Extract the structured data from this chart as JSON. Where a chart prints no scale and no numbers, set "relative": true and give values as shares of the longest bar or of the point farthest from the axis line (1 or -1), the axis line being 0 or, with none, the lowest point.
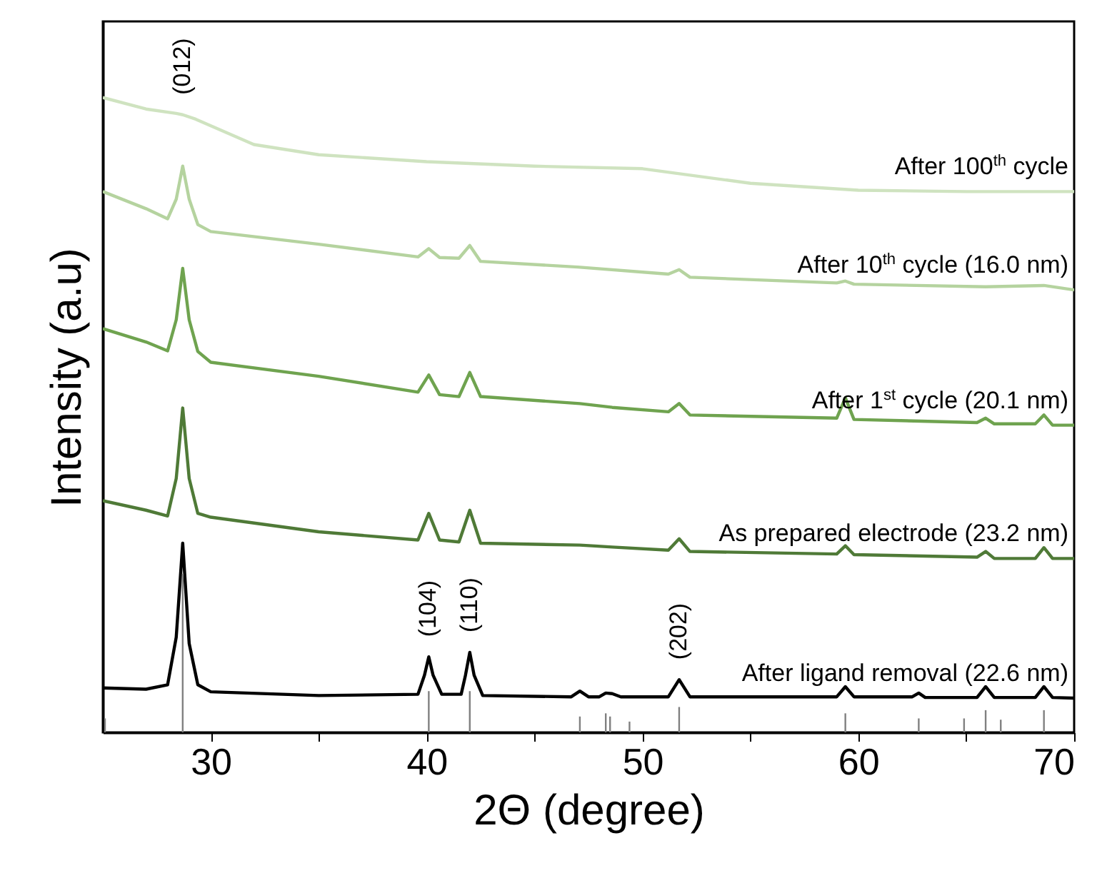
{
  "chart_data": {
    "type": "line",
    "relative": true,
    "xlabel": "2Θ (degree)",
    "ylabel": "Intensity (a.u)",
    "xlim": [
      25,
      70
    ],
    "xticks": [
      30,
      {
        "value": 35,
        "label": null
      },
      40,
      {
        "value": 45,
        "label": null
      },
      50,
      {
        "value": 55,
        "label": null
      },
      60,
      {
        "value": 65,
        "label": null
      },
      70
    ],
    "series": [
      {
        "name": "After ligand removal (22.6 nm)",
        "color": "#000000",
        "x": [
          25,
          27,
          28.0,
          28.4,
          28.7,
          29.0,
          29.4,
          30,
          35,
          39.6,
          39.9,
          40.1,
          40.3,
          40.7,
          41.6,
          41.8,
          42.0,
          42.2,
          42.6,
          46.7,
          47.1,
          47.5,
          48.0,
          48.3,
          48.6,
          49.0,
          51.2,
          51.7,
          52.2,
          59.0,
          59.4,
          59.8,
          62.5,
          62.8,
          63.1,
          65.5,
          65.9,
          66.3,
          68.2,
          68.6,
          69.0,
          70
        ],
        "values": [
          0.07,
          0.068,
          0.075,
          0.15,
          0.298,
          0.14,
          0.075,
          0.064,
          0.058,
          0.06,
          0.09,
          0.119,
          0.09,
          0.06,
          0.06,
          0.09,
          0.126,
          0.09,
          0.058,
          0.056,
          0.065,
          0.056,
          0.056,
          0.062,
          0.061,
          0.056,
          0.056,
          0.083,
          0.056,
          0.056,
          0.072,
          0.056,
          0.056,
          0.062,
          0.055,
          0.055,
          0.072,
          0.055,
          0.055,
          0.072,
          0.055,
          0.054
        ]
      },
      {
        "name": "As prepared electrode (23.2 nm)",
        "color": "#4f7a37",
        "x": [
          25,
          27,
          28.0,
          28.4,
          28.7,
          29.0,
          29.4,
          30,
          35,
          39.6,
          40.1,
          40.6,
          41.5,
          42.0,
          42.5,
          47.1,
          48.6,
          51.2,
          51.7,
          52.2,
          59.0,
          59.4,
          59.8,
          65.5,
          65.9,
          66.3,
          68.2,
          68.6,
          69.0,
          70
        ],
        "values": [
          0.365,
          0.35,
          0.341,
          0.4,
          0.511,
          0.4,
          0.345,
          0.339,
          0.316,
          0.303,
          0.345,
          0.303,
          0.3,
          0.35,
          0.298,
          0.295,
          0.292,
          0.287,
          0.305,
          0.285,
          0.281,
          0.294,
          0.28,
          0.276,
          0.285,
          0.274,
          0.274,
          0.291,
          0.274,
          0.274
        ]
      },
      {
        "name": "After 1$^{st}$ cycle (20.1 nm)",
        "color": "#6fa34f",
        "x": [
          25,
          27,
          28.0,
          28.4,
          28.7,
          29.0,
          29.4,
          30,
          35,
          39.6,
          40.1,
          40.6,
          41.5,
          42.0,
          42.5,
          47.1,
          48.6,
          51.2,
          51.7,
          52.2,
          59.0,
          59.4,
          59.8,
          65.5,
          65.9,
          66.3,
          68.2,
          68.6,
          69.0,
          70
        ],
        "values": [
          0.636,
          0.615,
          0.601,
          0.65,
          0.731,
          0.65,
          0.6,
          0.583,
          0.561,
          0.536,
          0.563,
          0.532,
          0.529,
          0.567,
          0.529,
          0.518,
          0.512,
          0.505,
          0.518,
          0.5,
          0.495,
          0.527,
          0.493,
          0.488,
          0.495,
          0.486,
          0.486,
          0.5,
          0.484,
          0.484
        ]
      },
      {
        "name": "After 10$^{th}$ cycle (16.0 nm)",
        "color": "#b5d39f",
        "x": [
          25,
          27,
          28.0,
          28.4,
          28.7,
          29.0,
          29.4,
          30,
          35,
          39.6,
          40.1,
          40.6,
          41.5,
          42.0,
          42.5,
          47,
          51.2,
          51.7,
          52.2,
          59.0,
          59.4,
          59.8,
          65.9,
          68.6,
          70
        ],
        "values": [
          0.852,
          0.825,
          0.809,
          0.84,
          0.892,
          0.84,
          0.8,
          0.789,
          0.769,
          0.749,
          0.762,
          0.748,
          0.747,
          0.767,
          0.742,
          0.733,
          0.722,
          0.729,
          0.717,
          0.708,
          0.711,
          0.706,
          0.702,
          0.704,
          0.697
        ]
      },
      {
        "name": "After 100$^{th}$ cycle",
        "color": "#cfe3c0",
        "x": [
          25,
          27,
          28.4,
          28.7,
          29.3,
          32,
          35,
          40,
          45,
          50,
          55,
          60,
          65,
          70
        ],
        "values": [
          1.0,
          0.982,
          0.975,
          0.973,
          0.966,
          0.926,
          0.91,
          0.899,
          0.892,
          0.888,
          0.865,
          0.854,
          0.852,
          0.852
        ]
      },
      {
        "type": "bar",
        "color": "#808080",
        "x": [
          25.1,
          28.7,
          40.1,
          42.0,
          47.1,
          48.3,
          48.5,
          49.4,
          51.7,
          59.4,
          62.8,
          64.9,
          65.9,
          66.6,
          68.6
        ],
        "values": [
          0.022,
          0.25,
          0.065,
          0.065,
          0.025,
          0.03,
          0.025,
          0.017,
          0.04,
          0.03,
          0.022,
          0.022,
          0.035,
          0.02,
          0.035
        ]
      }
    ],
    "annotations": [
      {
        "text": "(012)",
        "x": 28.7,
        "y": 0.973
      },
      {
        "text": "(104)",
        "x": 40.1,
        "y": 0.119
      },
      {
        "text": "(110)",
        "x": 42.0,
        "y": 0.126
      },
      {
        "text": "(202)",
        "x": 51.7,
        "y": 0.083
      }
    ]
  }
}
